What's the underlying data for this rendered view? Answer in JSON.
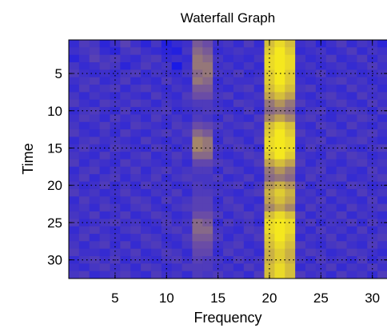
{
  "chart_data": {
    "type": "heatmap",
    "title": "Waterfall Graph",
    "xlabel": "Frequency",
    "ylabel": "Time",
    "xlim": [
      0.5,
      31.5
    ],
    "ylim": [
      32.5,
      0.5
    ],
    "x_ticks": [
      5,
      10,
      15,
      20,
      25,
      30
    ],
    "y_ticks": [
      5,
      10,
      15,
      20,
      25,
      30
    ],
    "grid": true,
    "colormap": "blue-yellow",
    "colors": {
      "low": "#1a1ae6",
      "mid": "#6a4ca6",
      "mid_high": "#b89a55",
      "high": "#f5e81e"
    },
    "columns": 31,
    "rows": 32,
    "values": [
      [
        0.15,
        0.3,
        0.25,
        0.1,
        0.2,
        0.35,
        0.2,
        0.1,
        0.25,
        0.05,
        0.15,
        0.2,
        0.5,
        0.45,
        0.2,
        0.25,
        0.15,
        0.3,
        0.15,
        0.85,
        0.95,
        0.85,
        0.2,
        0.25,
        0.1,
        0.2,
        0.3,
        0.15,
        0.25,
        0.2,
        0.1
      ],
      [
        0.2,
        0.25,
        0.3,
        0.15,
        0.1,
        0.25,
        0.3,
        0.2,
        0.15,
        0.1,
        0.05,
        0.25,
        0.55,
        0.5,
        0.15,
        0.2,
        0.25,
        0.2,
        0.2,
        0.9,
        1.0,
        0.9,
        0.15,
        0.2,
        0.25,
        0.15,
        0.2,
        0.3,
        0.15,
        0.25,
        0.2
      ],
      [
        0.1,
        0.2,
        0.35,
        0.25,
        0.3,
        0.2,
        0.15,
        0.25,
        0.3,
        0.15,
        0.2,
        0.15,
        0.6,
        0.55,
        0.25,
        0.15,
        0.2,
        0.15,
        0.25,
        0.95,
        1.0,
        0.95,
        0.25,
        0.15,
        0.2,
        0.3,
        0.15,
        0.2,
        0.3,
        0.15,
        0.25
      ],
      [
        0.25,
        0.15,
        0.2,
        0.3,
        0.25,
        0.1,
        0.2,
        0.3,
        0.2,
        0.25,
        0.0,
        0.2,
        0.6,
        0.6,
        0.2,
        0.25,
        0.15,
        0.25,
        0.15,
        0.95,
        1.0,
        0.95,
        0.2,
        0.25,
        0.15,
        0.2,
        0.25,
        0.15,
        0.2,
        0.3,
        0.2
      ],
      [
        0.3,
        0.2,
        0.15,
        0.2,
        0.15,
        0.25,
        0.3,
        0.15,
        0.25,
        0.2,
        0.15,
        0.25,
        0.55,
        0.6,
        0.25,
        0.2,
        0.3,
        0.15,
        0.2,
        0.9,
        1.0,
        0.9,
        0.15,
        0.2,
        0.3,
        0.15,
        0.2,
        0.25,
        0.15,
        0.2,
        0.25
      ],
      [
        0.2,
        0.25,
        0.3,
        0.15,
        0.2,
        0.3,
        0.15,
        0.2,
        0.15,
        0.3,
        0.2,
        0.15,
        0.6,
        0.55,
        0.15,
        0.25,
        0.2,
        0.2,
        0.25,
        0.9,
        1.0,
        0.9,
        0.2,
        0.15,
        0.2,
        0.25,
        0.3,
        0.2,
        0.25,
        0.15,
        0.2
      ],
      [
        0.15,
        0.3,
        0.2,
        0.25,
        0.3,
        0.15,
        0.25,
        0.3,
        0.2,
        0.15,
        0.25,
        0.2,
        0.5,
        0.5,
        0.2,
        0.15,
        0.25,
        0.3,
        0.15,
        0.85,
        0.95,
        0.85,
        0.25,
        0.3,
        0.15,
        0.2,
        0.15,
        0.3,
        0.2,
        0.25,
        0.15
      ],
      [
        0.25,
        0.15,
        0.25,
        0.2,
        0.15,
        0.25,
        0.2,
        0.15,
        0.3,
        0.2,
        0.15,
        0.3,
        0.45,
        0.45,
        0.25,
        0.3,
        0.15,
        0.2,
        0.25,
        0.75,
        0.85,
        0.75,
        0.2,
        0.15,
        0.25,
        0.3,
        0.2,
        0.15,
        0.3,
        0.2,
        0.25
      ],
      [
        0.3,
        0.2,
        0.15,
        0.3,
        0.25,
        0.2,
        0.3,
        0.25,
        0.15,
        0.25,
        0.2,
        0.25,
        0.3,
        0.3,
        0.2,
        0.15,
        0.3,
        0.25,
        0.2,
        0.6,
        0.7,
        0.6,
        0.3,
        0.2,
        0.15,
        0.25,
        0.3,
        0.2,
        0.15,
        0.3,
        0.2
      ],
      [
        0.15,
        0.25,
        0.3,
        0.2,
        0.15,
        0.3,
        0.15,
        0.2,
        0.25,
        0.3,
        0.15,
        0.2,
        0.25,
        0.3,
        0.25,
        0.2,
        0.15,
        0.3,
        0.15,
        0.55,
        0.6,
        0.55,
        0.15,
        0.25,
        0.3,
        0.15,
        0.2,
        0.3,
        0.25,
        0.15,
        0.3
      ],
      [
        0.2,
        0.3,
        0.25,
        0.15,
        0.3,
        0.2,
        0.25,
        0.15,
        0.3,
        0.2,
        0.25,
        0.15,
        0.3,
        0.25,
        0.15,
        0.3,
        0.2,
        0.15,
        0.3,
        0.65,
        0.75,
        0.65,
        0.25,
        0.3,
        0.2,
        0.15,
        0.25,
        0.2,
        0.3,
        0.25,
        0.15
      ],
      [
        0.25,
        0.15,
        0.2,
        0.3,
        0.2,
        0.15,
        0.3,
        0.25,
        0.2,
        0.15,
        0.3,
        0.25,
        0.45,
        0.4,
        0.3,
        0.2,
        0.25,
        0.3,
        0.2,
        0.85,
        0.95,
        0.85,
        0.2,
        0.15,
        0.3,
        0.25,
        0.15,
        0.3,
        0.2,
        0.15,
        0.25
      ],
      [
        0.3,
        0.2,
        0.15,
        0.25,
        0.15,
        0.3,
        0.2,
        0.15,
        0.25,
        0.3,
        0.2,
        0.3,
        0.55,
        0.5,
        0.2,
        0.25,
        0.15,
        0.2,
        0.25,
        0.9,
        1.0,
        0.9,
        0.3,
        0.2,
        0.15,
        0.3,
        0.25,
        0.15,
        0.25,
        0.3,
        0.2
      ],
      [
        0.15,
        0.25,
        0.3,
        0.2,
        0.25,
        0.2,
        0.15,
        0.3,
        0.2,
        0.15,
        0.25,
        0.2,
        0.65,
        0.6,
        0.15,
        0.3,
        0.25,
        0.15,
        0.3,
        0.95,
        1.0,
        0.95,
        0.2,
        0.25,
        0.3,
        0.15,
        0.2,
        0.25,
        0.3,
        0.2,
        0.15
      ],
      [
        0.2,
        0.3,
        0.2,
        0.15,
        0.3,
        0.25,
        0.2,
        0.15,
        0.3,
        0.25,
        0.15,
        0.25,
        0.65,
        0.6,
        0.25,
        0.2,
        0.3,
        0.25,
        0.15,
        0.95,
        1.0,
        0.95,
        0.15,
        0.3,
        0.2,
        0.25,
        0.3,
        0.2,
        0.15,
        0.25,
        0.3
      ],
      [
        0.25,
        0.2,
        0.15,
        0.3,
        0.2,
        0.15,
        0.25,
        0.3,
        0.15,
        0.2,
        0.3,
        0.2,
        0.55,
        0.55,
        0.2,
        0.15,
        0.2,
        0.3,
        0.25,
        0.9,
        1.0,
        0.9,
        0.25,
        0.2,
        0.15,
        0.3,
        0.2,
        0.3,
        0.25,
        0.15,
        0.2
      ],
      [
        0.3,
        0.15,
        0.25,
        0.2,
        0.15,
        0.3,
        0.2,
        0.25,
        0.2,
        0.15,
        0.25,
        0.15,
        0.4,
        0.4,
        0.3,
        0.25,
        0.15,
        0.2,
        0.3,
        0.75,
        0.85,
        0.75,
        0.3,
        0.15,
        0.25,
        0.2,
        0.15,
        0.25,
        0.3,
        0.2,
        0.25
      ],
      [
        0.15,
        0.25,
        0.3,
        0.15,
        0.25,
        0.2,
        0.3,
        0.15,
        0.25,
        0.3,
        0.2,
        0.25,
        0.3,
        0.3,
        0.15,
        0.3,
        0.25,
        0.15,
        0.2,
        0.6,
        0.7,
        0.6,
        0.2,
        0.25,
        0.3,
        0.15,
        0.25,
        0.2,
        0.15,
        0.3,
        0.2
      ],
      [
        0.2,
        0.3,
        0.15,
        0.25,
        0.3,
        0.15,
        0.25,
        0.2,
        0.3,
        0.15,
        0.25,
        0.3,
        0.25,
        0.25,
        0.3,
        0.15,
        0.2,
        0.3,
        0.15,
        0.55,
        0.6,
        0.55,
        0.15,
        0.3,
        0.2,
        0.25,
        0.3,
        0.15,
        0.2,
        0.25,
        0.3
      ],
      [
        0.25,
        0.15,
        0.2,
        0.3,
        0.15,
        0.25,
        0.15,
        0.3,
        0.2,
        0.25,
        0.15,
        0.2,
        0.3,
        0.25,
        0.2,
        0.25,
        0.3,
        0.15,
        0.25,
        0.7,
        0.8,
        0.7,
        0.3,
        0.15,
        0.25,
        0.2,
        0.15,
        0.3,
        0.25,
        0.15,
        0.2
      ],
      [
        0.3,
        0.2,
        0.25,
        0.15,
        0.2,
        0.3,
        0.2,
        0.15,
        0.25,
        0.2,
        0.3,
        0.15,
        0.3,
        0.3,
        0.25,
        0.2,
        0.15,
        0.25,
        0.3,
        0.8,
        0.9,
        0.8,
        0.2,
        0.25,
        0.15,
        0.3,
        0.2,
        0.15,
        0.3,
        0.2,
        0.25
      ],
      [
        0.15,
        0.3,
        0.2,
        0.25,
        0.15,
        0.2,
        0.3,
        0.25,
        0.15,
        0.3,
        0.2,
        0.25,
        0.35,
        0.35,
        0.15,
        0.3,
        0.2,
        0.2,
        0.15,
        0.75,
        0.85,
        0.75,
        0.25,
        0.2,
        0.3,
        0.15,
        0.25,
        0.2,
        0.15,
        0.3,
        0.15
      ],
      [
        0.2,
        0.25,
        0.15,
        0.3,
        0.25,
        0.15,
        0.25,
        0.3,
        0.2,
        0.15,
        0.25,
        0.3,
        0.35,
        0.35,
        0.2,
        0.25,
        0.3,
        0.15,
        0.25,
        0.65,
        0.75,
        0.65,
        0.15,
        0.3,
        0.2,
        0.25,
        0.15,
        0.3,
        0.2,
        0.25,
        0.3
      ],
      [
        0.25,
        0.2,
        0.3,
        0.15,
        0.2,
        0.3,
        0.15,
        0.2,
        0.3,
        0.25,
        0.15,
        0.2,
        0.45,
        0.45,
        0.3,
        0.15,
        0.25,
        0.3,
        0.2,
        0.85,
        0.95,
        0.85,
        0.3,
        0.15,
        0.25,
        0.2,
        0.3,
        0.15,
        0.25,
        0.2,
        0.15
      ],
      [
        0.3,
        0.15,
        0.2,
        0.25,
        0.3,
        0.2,
        0.25,
        0.15,
        0.2,
        0.3,
        0.2,
        0.25,
        0.55,
        0.5,
        0.15,
        0.3,
        0.2,
        0.25,
        0.15,
        0.95,
        1.0,
        0.95,
        0.2,
        0.3,
        0.15,
        0.25,
        0.2,
        0.3,
        0.15,
        0.3,
        0.2
      ],
      [
        0.15,
        0.25,
        0.3,
        0.2,
        0.15,
        0.25,
        0.3,
        0.2,
        0.15,
        0.25,
        0.3,
        0.2,
        0.55,
        0.55,
        0.25,
        0.2,
        0.15,
        0.3,
        0.25,
        0.95,
        1.0,
        0.95,
        0.25,
        0.15,
        0.3,
        0.2,
        0.25,
        0.15,
        0.3,
        0.15,
        0.25
      ],
      [
        0.2,
        0.3,
        0.15,
        0.25,
        0.2,
        0.15,
        0.2,
        0.3,
        0.25,
        0.15,
        0.2,
        0.3,
        0.5,
        0.5,
        0.3,
        0.15,
        0.25,
        0.2,
        0.3,
        0.9,
        1.0,
        0.9,
        0.15,
        0.25,
        0.2,
        0.3,
        0.15,
        0.25,
        0.2,
        0.25,
        0.3
      ],
      [
        0.25,
        0.15,
        0.25,
        0.3,
        0.15,
        0.3,
        0.15,
        0.25,
        0.3,
        0.2,
        0.15,
        0.25,
        0.45,
        0.45,
        0.2,
        0.25,
        0.3,
        0.15,
        0.2,
        0.85,
        0.95,
        0.85,
        0.3,
        0.2,
        0.15,
        0.25,
        0.3,
        0.2,
        0.15,
        0.3,
        0.2
      ],
      [
        0.3,
        0.2,
        0.2,
        0.15,
        0.25,
        0.2,
        0.3,
        0.15,
        0.2,
        0.3,
        0.25,
        0.15,
        0.4,
        0.4,
        0.15,
        0.3,
        0.2,
        0.25,
        0.15,
        0.8,
        0.9,
        0.8,
        0.2,
        0.3,
        0.25,
        0.15,
        0.2,
        0.3,
        0.25,
        0.2,
        0.15
      ],
      [
        0.15,
        0.25,
        0.3,
        0.2,
        0.3,
        0.15,
        0.25,
        0.2,
        0.15,
        0.25,
        0.3,
        0.2,
        0.35,
        0.3,
        0.25,
        0.15,
        0.3,
        0.2,
        0.25,
        0.8,
        0.9,
        0.8,
        0.25,
        0.15,
        0.3,
        0.2,
        0.25,
        0.15,
        0.3,
        0.15,
        0.25
      ],
      [
        0.2,
        0.15,
        0.25,
        0.3,
        0.2,
        0.25,
        0.15,
        0.3,
        0.25,
        0.15,
        0.2,
        0.3,
        0.3,
        0.3,
        0.2,
        0.25,
        0.15,
        0.3,
        0.2,
        0.85,
        0.95,
        0.85,
        0.15,
        0.25,
        0.2,
        0.3,
        0.15,
        0.25,
        0.2,
        0.3,
        0.2
      ],
      [
        0.25,
        0.3,
        0.15,
        0.2,
        0.25,
        0.3,
        0.2,
        0.15,
        0.3,
        0.2,
        0.25,
        0.15,
        0.3,
        0.25,
        0.3,
        0.2,
        0.25,
        0.15,
        0.3,
        0.85,
        0.95,
        0.85,
        0.3,
        0.2,
        0.25,
        0.15,
        0.3,
        0.2,
        0.25,
        0.15,
        0.3
      ]
    ]
  }
}
